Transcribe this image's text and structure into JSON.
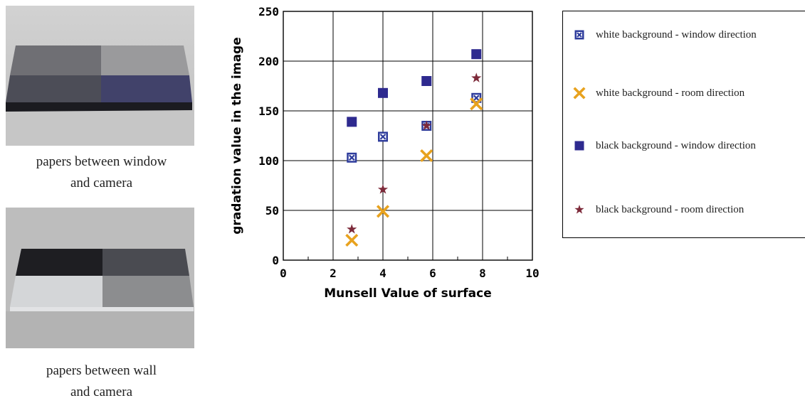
{
  "photos": [
    {
      "caption_line1": "papers between window",
      "caption_line2": "and camera"
    },
    {
      "caption_line1": "papers between wall",
      "caption_line2": "and camera"
    }
  ],
  "chart_data": {
    "type": "scatter",
    "xlabel": "Munsell Value of surface",
    "ylabel": "gradation value in the image",
    "xlim": [
      0,
      10
    ],
    "ylim": [
      0,
      250
    ],
    "x_ticks": [
      "0",
      "2",
      "4",
      "6",
      "8",
      "10"
    ],
    "y_ticks": [
      "0",
      "50",
      "100",
      "150",
      "200",
      "250"
    ],
    "grid": true,
    "legend_position": "right",
    "series": [
      {
        "name": "white background - window direction",
        "marker": "boxed-x",
        "color": "#2E3C9C",
        "x": [
          2.75,
          4,
          5.75,
          7.75
        ],
        "y": [
          103,
          124,
          135,
          163
        ]
      },
      {
        "name": "white background - room direction",
        "marker": "x",
        "color": "#E8A21E",
        "x": [
          2.75,
          4,
          5.75,
          7.75
        ],
        "y": [
          20,
          49,
          105,
          157
        ]
      },
      {
        "name": "black background - window direction",
        "marker": "square",
        "color": "#2E2A8F",
        "x": [
          2.75,
          4,
          5.75,
          7.75
        ],
        "y": [
          139,
          168,
          180,
          207
        ]
      },
      {
        "name": "black background - room direction",
        "marker": "star",
        "color": "#7D2A3A",
        "x": [
          2.75,
          4,
          5.75,
          7.75
        ],
        "y": [
          31,
          71,
          135,
          183
        ]
      }
    ]
  }
}
